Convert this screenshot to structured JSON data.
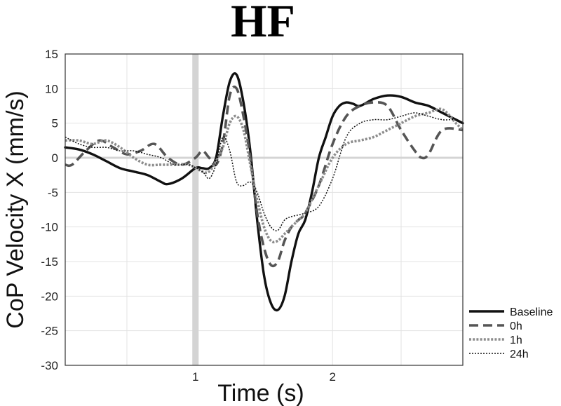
{
  "chart_data": {
    "type": "line",
    "title": "HF",
    "xlabel": "Time (s)",
    "ylabel": "CoP Velocity X (mm/s)",
    "xlim": [
      0.05,
      2.95
    ],
    "ylim": [
      -30,
      15
    ],
    "xticks": [
      1,
      2
    ],
    "yticks": [
      15,
      10,
      5,
      0,
      -5,
      -10,
      -15,
      -20,
      -25,
      -30
    ],
    "grid": true,
    "legend_position": "bottom-right outside",
    "reference_vline": 1.0,
    "reference_hline": 0,
    "series": [
      {
        "name": "Baseline",
        "style": "solid",
        "color": "#111111",
        "x": [
          0.05,
          0.15,
          0.25,
          0.35,
          0.45,
          0.55,
          0.65,
          0.75,
          0.8,
          0.9,
          1.0,
          1.05,
          1.1,
          1.15,
          1.2,
          1.25,
          1.3,
          1.35,
          1.4,
          1.45,
          1.5,
          1.55,
          1.6,
          1.65,
          1.7,
          1.75,
          1.8,
          1.85,
          1.9,
          1.95,
          2.0,
          2.05,
          2.1,
          2.15,
          2.2,
          2.3,
          2.4,
          2.5,
          2.6,
          2.7,
          2.8,
          2.9,
          2.95
        ],
        "y": [
          1.5,
          1.2,
          0.5,
          -0.5,
          -1.5,
          -2,
          -2.5,
          -3.5,
          -3.8,
          -3,
          -1.5,
          -1.5,
          -1.5,
          0,
          6,
          11,
          12,
          8,
          1,
          -9,
          -17,
          -21,
          -22,
          -20,
          -15,
          -11,
          -9,
          -5,
          0,
          3,
          6,
          7.5,
          8,
          7.8,
          7.5,
          8.5,
          9,
          8.8,
          8,
          7.5,
          6.5,
          5.5,
          5
        ]
      },
      {
        "name": "0h",
        "style": "dashed",
        "color": "#555555",
        "x": [
          0.05,
          0.1,
          0.2,
          0.3,
          0.4,
          0.5,
          0.6,
          0.7,
          0.8,
          0.9,
          1.0,
          1.05,
          1.1,
          1.15,
          1.2,
          1.25,
          1.3,
          1.35,
          1.4,
          1.45,
          1.5,
          1.55,
          1.6,
          1.65,
          1.7,
          1.75,
          1.8,
          1.9,
          2.0,
          2.1,
          2.2,
          2.3,
          2.4,
          2.5,
          2.6,
          2.65,
          2.7,
          2.8,
          2.95
        ],
        "y": [
          -1,
          -1,
          1,
          2.5,
          1.5,
          0.5,
          1,
          2,
          0,
          -1,
          0,
          1,
          0,
          -1,
          2,
          9,
          10,
          6,
          0,
          -8,
          -13,
          -15.5,
          -15,
          -12,
          -10,
          -9,
          -8,
          -4,
          2,
          6,
          7.5,
          8,
          7.5,
          4,
          1,
          0,
          0.5,
          4,
          4
        ]
      },
      {
        "name": "1h",
        "style": "dotted",
        "color": "#8c8c8c",
        "x": [
          0.05,
          0.15,
          0.25,
          0.35,
          0.45,
          0.55,
          0.65,
          0.75,
          0.85,
          0.95,
          1.05,
          1.1,
          1.15,
          1.2,
          1.25,
          1.3,
          1.35,
          1.4,
          1.45,
          1.5,
          1.55,
          1.6,
          1.65,
          1.7,
          1.75,
          1.8,
          1.9,
          2.0,
          2.1,
          2.2,
          2.3,
          2.4,
          2.5,
          2.6,
          2.7,
          2.8,
          2.9,
          2.95
        ],
        "y": [
          2.5,
          2.5,
          2,
          2.5,
          1.5,
          0,
          -1,
          -1,
          -1,
          -1,
          -2,
          -2,
          -0.5,
          1.5,
          5,
          6,
          4,
          -1,
          -6,
          -10,
          -12,
          -12,
          -11,
          -10,
          -9,
          -8,
          -4,
          0,
          2,
          2.5,
          3,
          4,
          5,
          6,
          6.5,
          7,
          5,
          4
        ]
      },
      {
        "name": "24h",
        "style": "dotted-fine",
        "color": "#111111",
        "x": [
          0.05,
          0.15,
          0.25,
          0.35,
          0.45,
          0.55,
          0.65,
          0.75,
          0.85,
          0.95,
          1.05,
          1.1,
          1.15,
          1.2,
          1.25,
          1.3,
          1.35,
          1.4,
          1.45,
          1.5,
          1.55,
          1.6,
          1.65,
          1.7,
          1.8,
          1.9,
          2.0,
          2.1,
          2.2,
          2.3,
          2.4,
          2.5,
          2.6,
          2.7,
          2.8,
          2.9,
          2.95
        ],
        "y": [
          3,
          2,
          1.5,
          1.5,
          1,
          1,
          0.5,
          0,
          -1,
          -1,
          -2,
          -3,
          -1,
          3,
          1,
          -3.5,
          -4,
          -3.5,
          -5,
          -8,
          -10,
          -10.5,
          -9,
          -8.5,
          -8,
          -7,
          -3,
          3,
          5,
          5.5,
          5.5,
          6,
          6.5,
          6,
          5.5,
          5.5,
          5
        ]
      }
    ]
  }
}
